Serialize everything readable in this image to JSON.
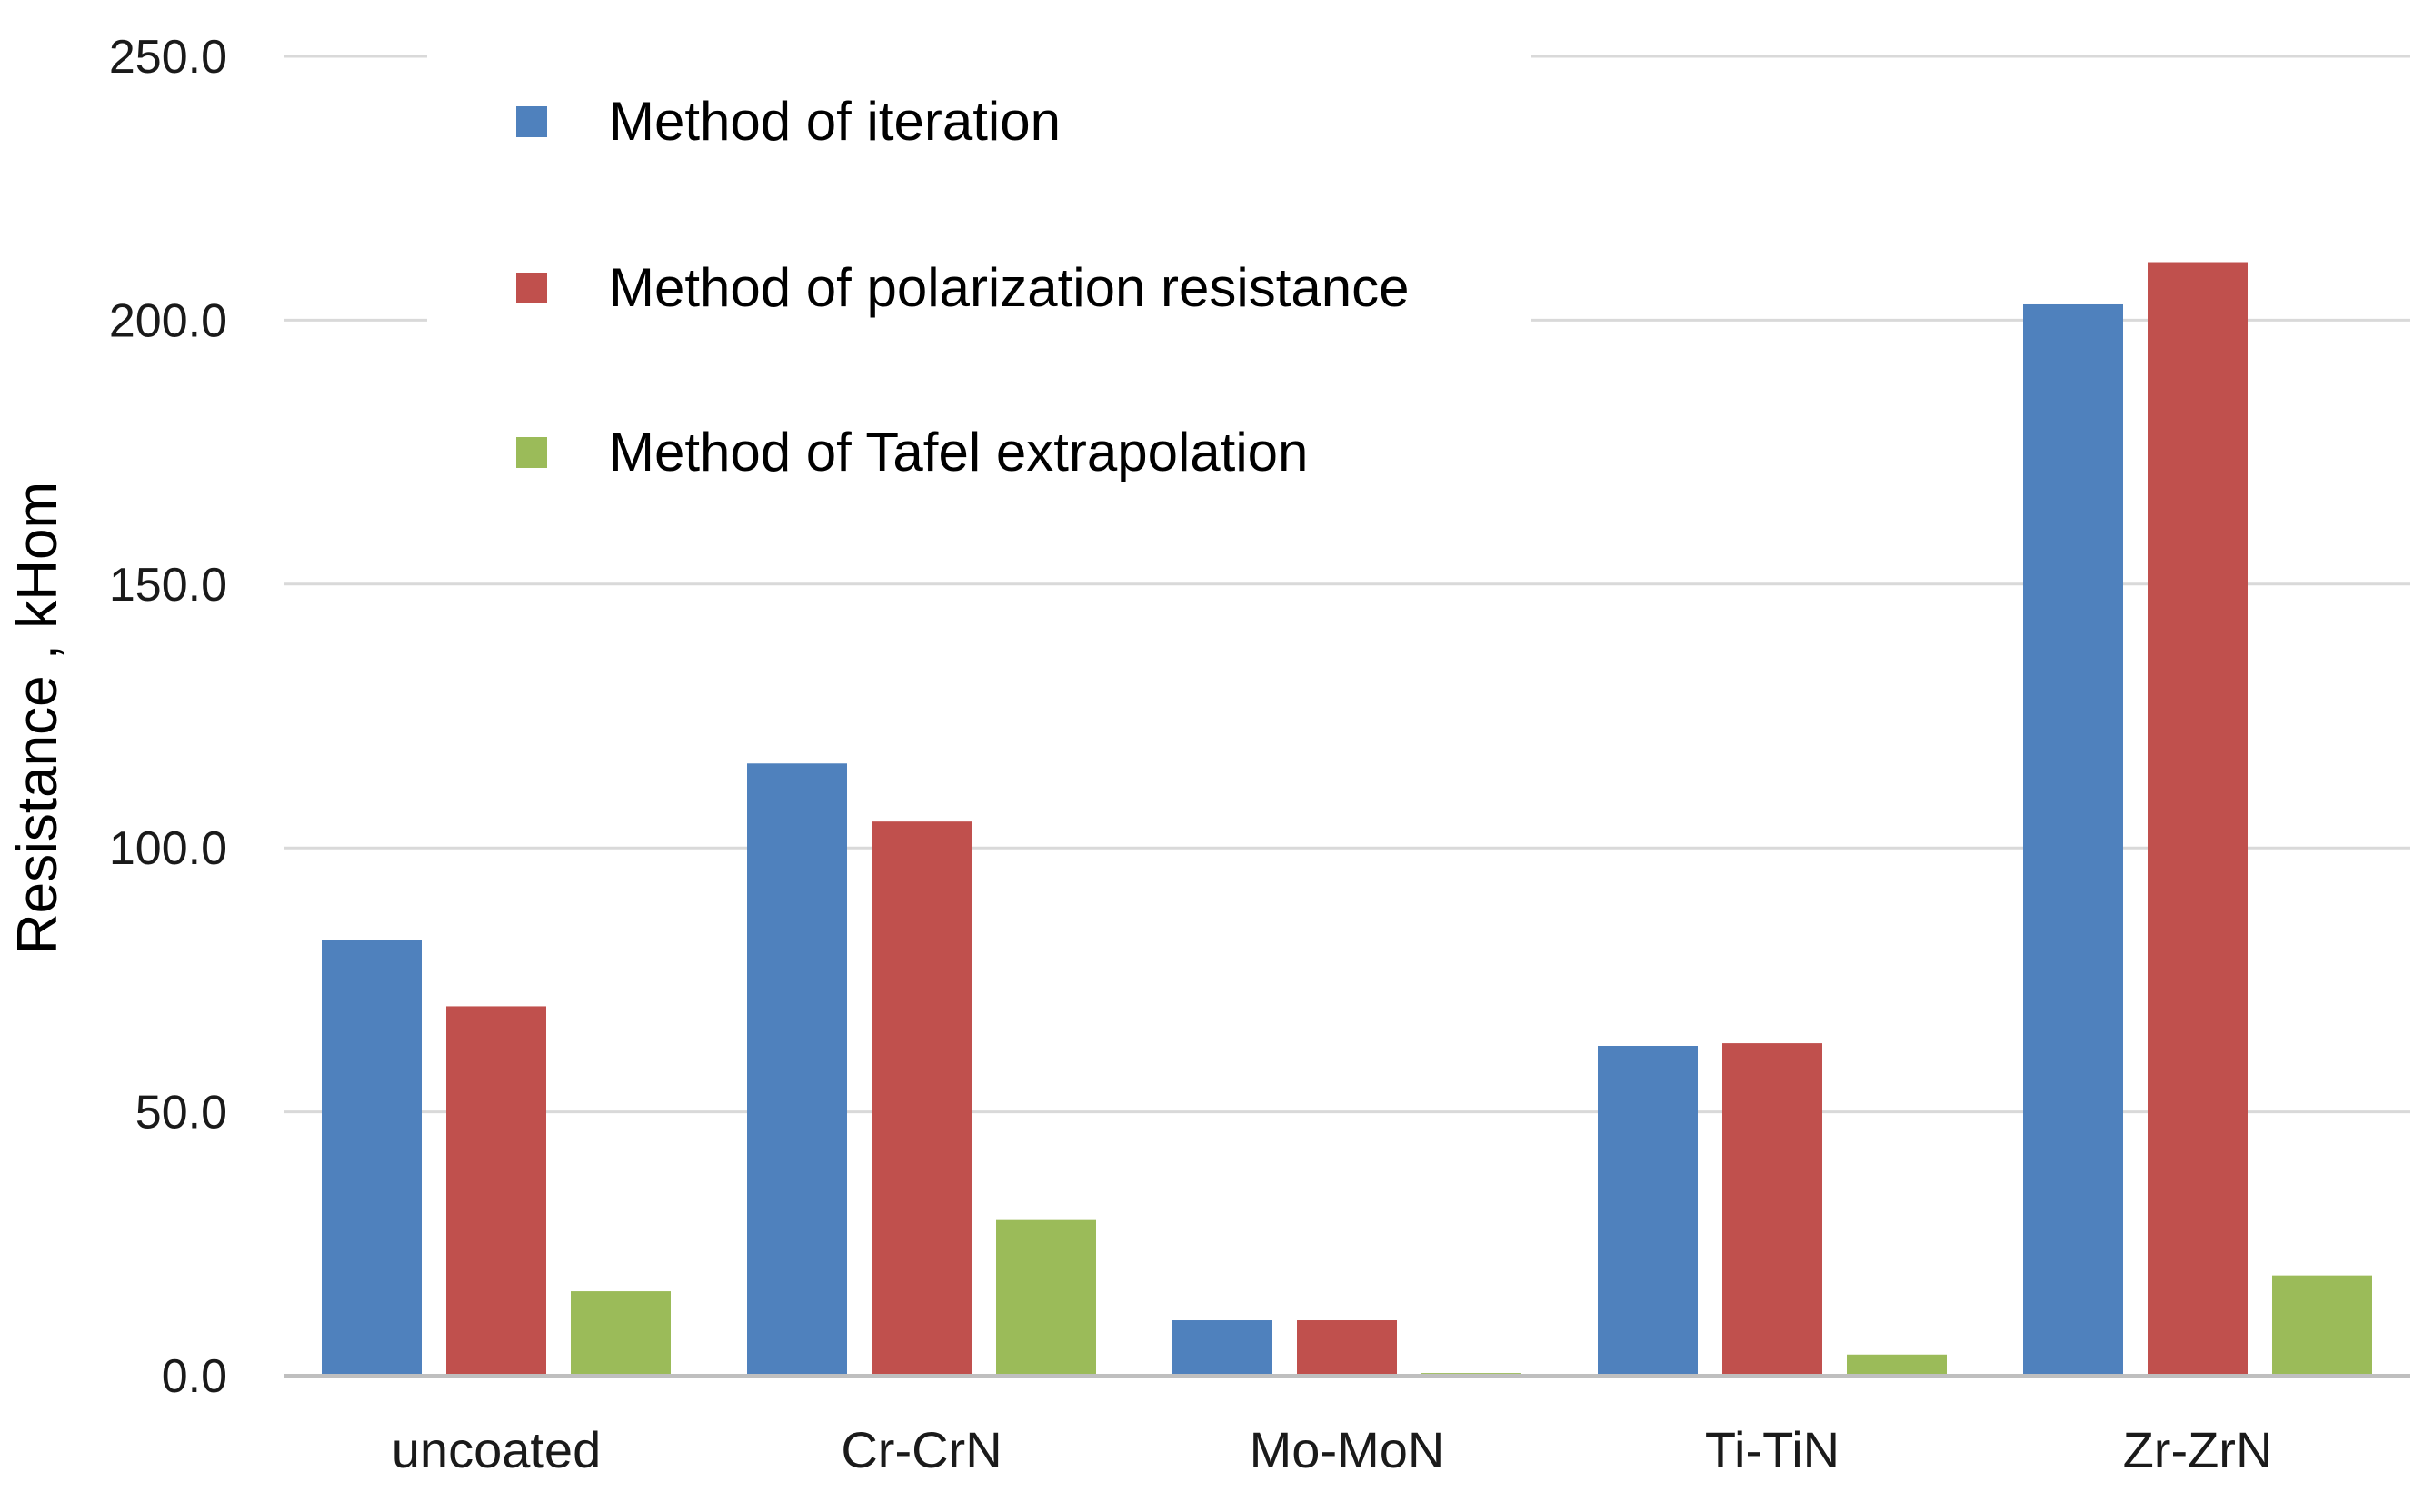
{
  "chart_data": {
    "type": "bar",
    "title": "",
    "xlabel": "",
    "ylabel": "Resistance , kHom",
    "ylim": [
      0,
      250
    ],
    "yticks": [
      0,
      50,
      100,
      150,
      200,
      250
    ],
    "ytick_labels": [
      "0.0",
      "50.0",
      "100.0",
      "150.0",
      "200.0",
      "250.0"
    ],
    "grid": true,
    "legend_position": "top-left",
    "categories": [
      "uncoated",
      "Cr-CrN",
      "Mo-MoN",
      "Ti-TiN",
      "Zr-ZrN"
    ],
    "series": [
      {
        "name": "Method of iteration",
        "color": "#4f81bd",
        "values": [
          82.5,
          116.0,
          10.5,
          62.5,
          203.0
        ]
      },
      {
        "name": "Method of polarization resistance",
        "color": "#c0504d",
        "values": [
          70.0,
          105.0,
          10.5,
          63.0,
          211.0
        ]
      },
      {
        "name": "Method of Tafel extrapolation",
        "color": "#9bbb59",
        "values": [
          16.0,
          29.5,
          0.5,
          4.0,
          19.0
        ]
      }
    ]
  }
}
